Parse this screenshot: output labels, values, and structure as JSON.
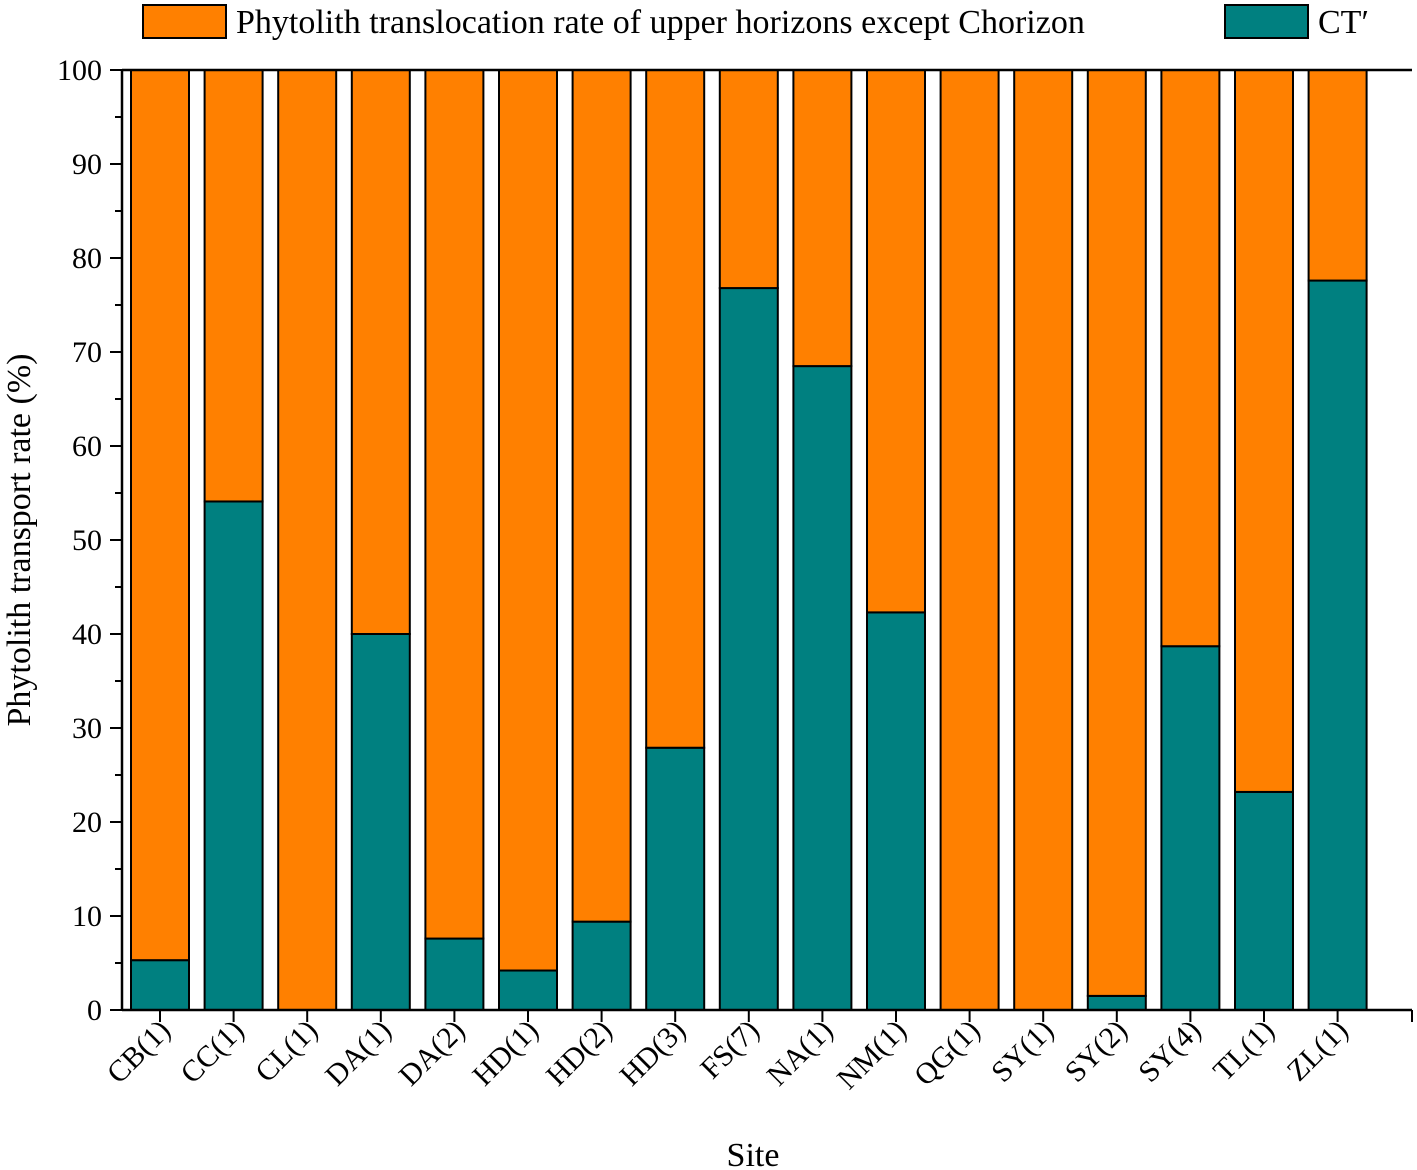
{
  "chart_data": {
    "type": "bar",
    "stacked": true,
    "xlabel": "Site",
    "ylabel": "Phytolith transport rate (%)",
    "ylim": [
      0,
      100
    ],
    "yticks": [
      0,
      10,
      20,
      30,
      40,
      50,
      60,
      70,
      80,
      90,
      100
    ],
    "grid": false,
    "legend_position": "top",
    "categories": [
      "CB(1)",
      "CC(1)",
      "CL(1)",
      "DA(1)",
      "DA(2)",
      "HD(1)",
      "HD(2)",
      "HD(3)",
      "FS(7)",
      "NA(1)",
      "NM(1)",
      "QG(1)",
      "SY(1)",
      "SY(2)",
      "SY(4)",
      "TL(1)",
      "ZL(1)"
    ],
    "series": [
      {
        "name": "CT′",
        "color": "#008080",
        "values": [
          5.3,
          54.1,
          0,
          40.0,
          7.6,
          4.2,
          9.4,
          27.9,
          76.8,
          68.5,
          42.3,
          0,
          0,
          1.5,
          38.7,
          23.2,
          77.6
        ]
      },
      {
        "name": "Phytolith translocation rate of upper horizons except Chorizon",
        "color": "#FF8000",
        "values": [
          94.7,
          45.9,
          100,
          60.0,
          92.4,
          95.8,
          90.6,
          72.1,
          23.2,
          31.5,
          57.7,
          100,
          100,
          98.5,
          61.3,
          76.8,
          22.4
        ]
      }
    ]
  }
}
